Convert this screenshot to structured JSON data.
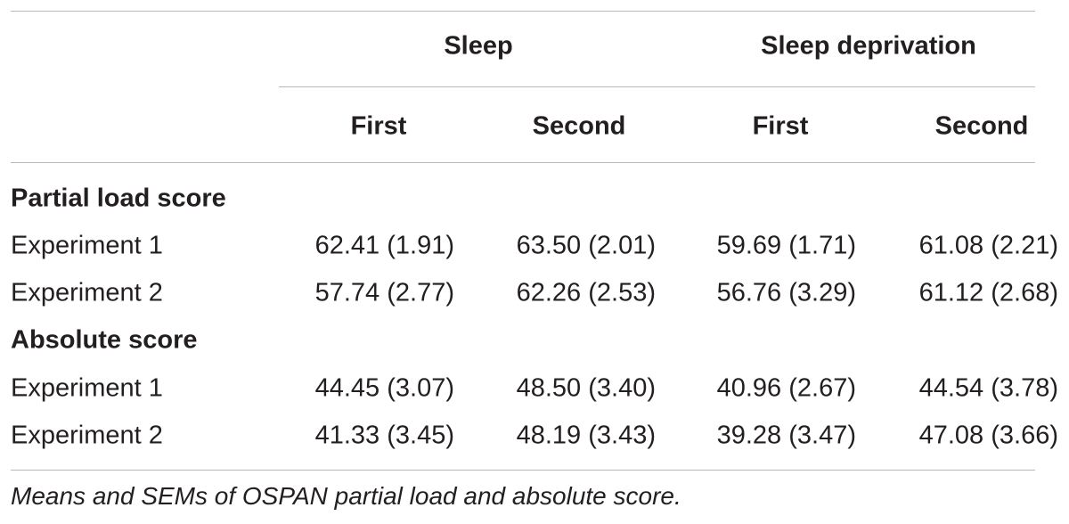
{
  "groups": [
    "Sleep",
    "Sleep deprivation"
  ],
  "subheaders": [
    "First",
    "Second",
    "First",
    "Second"
  ],
  "sections": [
    {
      "title": "Partial load score",
      "rows": [
        {
          "label": "Experiment 1",
          "values": [
            "62.41 (1.91)",
            "63.50 (2.01)",
            "59.69 (1.71)",
            "61.08 (2.21)"
          ]
        },
        {
          "label": "Experiment 2",
          "values": [
            "57.74 (2.77)",
            "62.26 (2.53)",
            "56.76 (3.29)",
            "61.12 (2.68)"
          ]
        }
      ]
    },
    {
      "title": "Absolute score",
      "rows": [
        {
          "label": "Experiment 1",
          "values": [
            "44.45 (3.07)",
            "48.50 (3.40)",
            "40.96 (2.67)",
            "44.54 (3.78)"
          ]
        },
        {
          "label": "Experiment 2",
          "values": [
            "41.33 (3.45)",
            "48.19 (3.43)",
            "39.28 (3.47)",
            "47.08 (3.66)"
          ]
        }
      ]
    }
  ],
  "caption": "Means and SEMs of OSPAN partial load and absolute score."
}
